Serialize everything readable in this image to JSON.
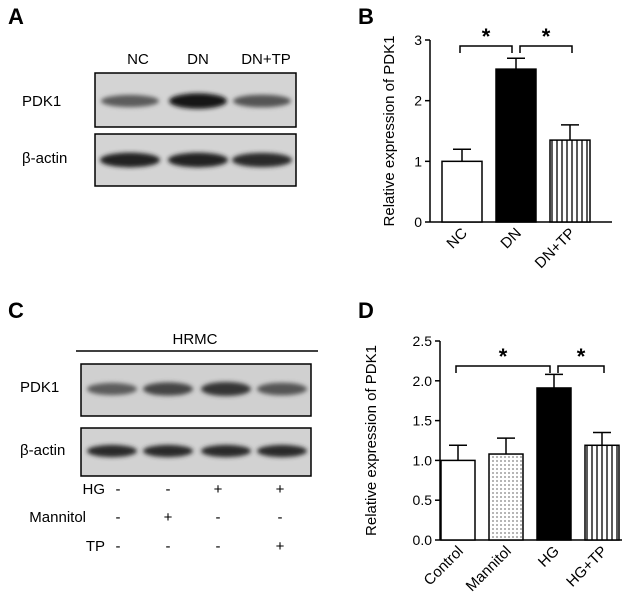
{
  "panels": {
    "A": {
      "label": "A",
      "lanes": [
        "NC",
        "DN",
        "DN+TP"
      ],
      "rows": [
        "PDK1",
        "β-actin"
      ],
      "pdk1_intensity": [
        0.55,
        1.0,
        0.6
      ],
      "actin_intensity": [
        0.9,
        0.9,
        0.85
      ]
    },
    "B": {
      "label": "B"
    },
    "C": {
      "label": "C",
      "cell_line": "HRMC",
      "rows": [
        "PDK1",
        "β-actin"
      ],
      "pdk1_intensity": [
        0.55,
        0.7,
        0.8,
        0.6
      ],
      "actin_intensity": [
        0.85,
        0.85,
        0.85,
        0.85
      ],
      "conditions": [
        {
          "name": "HG",
          "signs": [
            "-",
            "-",
            "+",
            "+"
          ]
        },
        {
          "name": "Mannitol",
          "signs": [
            "-",
            "+",
            "-",
            "-"
          ]
        },
        {
          "name": "TP",
          "signs": [
            "-",
            "-",
            "-",
            "+"
          ]
        }
      ]
    },
    "D": {
      "label": "D"
    }
  },
  "chart_data": [
    {
      "panel": "B",
      "type": "bar",
      "categories": [
        "NC",
        "DN",
        "DN+TP"
      ],
      "values": [
        1.0,
        2.52,
        1.35
      ],
      "errors": [
        0.2,
        0.18,
        0.25
      ],
      "fills": [
        "white",
        "black",
        "vertical-stripes"
      ],
      "ylabel": "Relative  expression of PDK1",
      "ylim": [
        0,
        3
      ],
      "yticks": [
        0,
        1,
        2,
        3
      ],
      "ytick_labels": [
        "0",
        "1",
        "2",
        "3"
      ],
      "significance": [
        {
          "from": 0,
          "to": 1,
          "label": "*"
        },
        {
          "from": 1,
          "to": 2,
          "label": "*"
        }
      ]
    },
    {
      "panel": "D",
      "type": "bar",
      "categories": [
        "Control",
        "Mannitol",
        "HG",
        "HG+TP"
      ],
      "values": [
        1.0,
        1.08,
        1.91,
        1.19
      ],
      "errors": [
        0.19,
        0.2,
        0.17,
        0.16
      ],
      "fills": [
        "white",
        "dots",
        "black",
        "vertical-stripes"
      ],
      "ylabel": "Relative  expression of PDK1",
      "ylim": [
        0,
        2.5
      ],
      "yticks": [
        0,
        0.5,
        1.0,
        1.5,
        2.0,
        2.5
      ],
      "ytick_labels": [
        "0.0",
        "0.5",
        "1.0",
        "1.5",
        "2.0",
        "2.5"
      ],
      "significance": [
        {
          "from": 0,
          "to": 2,
          "label": "*"
        },
        {
          "from": 2,
          "to": 3,
          "label": "*"
        }
      ]
    }
  ]
}
